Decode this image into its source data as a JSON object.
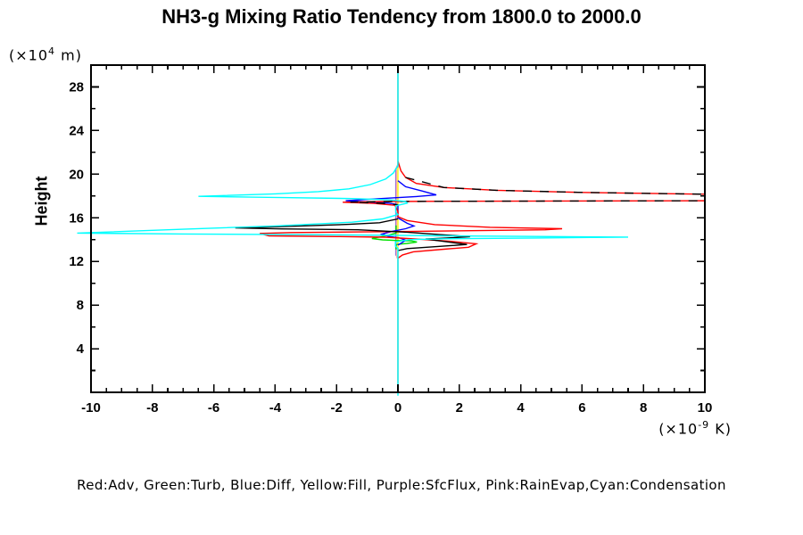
{
  "title": "NH3-g Mixing Ratio Tendency from 1800.0 to 2000.0",
  "legend_text": "Red:Adv, Green:Turb, Blue:Diff, Yellow:Fill, Purple:SfcFlux, Pink:RainEvap,Cyan:Condensation",
  "y_axis": {
    "label": "Height",
    "unit_prefix": "(×10",
    "unit_exp": "4",
    "unit_suffix": " m)",
    "min": 0,
    "max": 30,
    "major_tick_values": [
      4,
      8,
      12,
      16,
      20,
      24,
      28
    ],
    "tick_labels": [
      "4",
      "8",
      "12",
      "16",
      "20",
      "24",
      "28"
    ],
    "minor_tick_interval": 2
  },
  "x_axis": {
    "unit_prefix": "(×10",
    "unit_exp": "-9",
    "unit_suffix": " K)",
    "min": -10,
    "max": 10,
    "major_tick_values": [
      -10,
      -8,
      -6,
      -4,
      -2,
      0,
      2,
      4,
      6,
      8,
      10
    ],
    "tick_labels": [
      "-10",
      "-8",
      "-6",
      "-4",
      "-2",
      "0",
      "2",
      "4",
      "6",
      "8",
      "10"
    ],
    "minor_tick_interval": 0.5
  },
  "chart_data": {
    "type": "line",
    "title": "NH3-g Mixing Ratio Tendency from 1800.0 to 2000.0",
    "xlabel": "(x10^-9 K)",
    "ylabel": "Height (x10^4 m)",
    "xlim": [
      -10,
      10
    ],
    "ylim": [
      0,
      30
    ],
    "grid": false,
    "legend_position": "bottom-text-line",
    "point_format": [
      "tendency_x1e-9_K",
      "height_x1e4_m"
    ],
    "series": [
      {
        "name": "Fill",
        "color": "#ffff00",
        "dash": null,
        "points": [
          [
            0,
            30
          ],
          [
            0,
            0
          ]
        ]
      },
      {
        "name": "SfcFlux",
        "color": "#9370db",
        "dash": null,
        "points": [
          [
            0,
            30
          ],
          [
            0,
            20.7
          ],
          [
            -0.07,
            20.5
          ],
          [
            -0.07,
            12.6
          ],
          [
            0,
            12.4
          ],
          [
            0,
            0
          ]
        ]
      },
      {
        "name": "RainEvap",
        "color": "#ffaaaa",
        "dash": null,
        "points": [
          [
            0,
            30
          ],
          [
            0,
            20.9
          ],
          [
            -0.04,
            20.7
          ],
          [
            -0.04,
            12.4
          ],
          [
            0,
            12.2
          ],
          [
            0,
            0
          ]
        ]
      },
      {
        "name": "Turb",
        "color": "#00e000",
        "dash": null,
        "points": [
          [
            -0.06,
            15.3
          ],
          [
            -0.06,
            14.6
          ],
          [
            -0.4,
            14.35
          ],
          [
            -0.85,
            14.1
          ],
          [
            -0.5,
            13.98
          ],
          [
            -0.06,
            13.92
          ],
          [
            0.45,
            13.88
          ],
          [
            0.62,
            13.78
          ],
          [
            0.3,
            13.65
          ],
          [
            -0.06,
            13.55
          ],
          [
            -0.06,
            13.1
          ]
        ]
      },
      {
        "name": "Diff",
        "color": "#0000ff",
        "dash": null,
        "points": [
          [
            0,
            19.4
          ],
          [
            0.25,
            18.85
          ],
          [
            0.8,
            18.45
          ],
          [
            1.25,
            18.1
          ],
          [
            0.6,
            17.95
          ],
          [
            -0.3,
            17.8
          ],
          [
            -1.7,
            17.57
          ],
          [
            -1.0,
            17.45
          ],
          [
            -0.3,
            17.35
          ],
          [
            0,
            17.2
          ],
          [
            0,
            16.0
          ],
          [
            0.3,
            15.5
          ],
          [
            0.52,
            15.25
          ],
          [
            0.25,
            15.0
          ],
          [
            -0.2,
            14.75
          ],
          [
            -0.52,
            14.5
          ],
          [
            -0.3,
            14.3
          ],
          [
            0.05,
            14.15
          ],
          [
            0.25,
            13.95
          ],
          [
            0.12,
            13.7
          ],
          [
            0,
            13.5
          ]
        ]
      },
      {
        "name": "Adv",
        "color": "#ff0000",
        "dash": null,
        "points": [
          [
            0,
            21.2
          ],
          [
            0.1,
            20.3
          ],
          [
            0.25,
            19.7
          ],
          [
            0.6,
            19.15
          ],
          [
            1.5,
            18.78
          ],
          [
            3.2,
            18.52
          ],
          [
            6,
            18.33
          ],
          [
            10.4,
            18.15
          ],
          [
            10.4,
            17.57
          ],
          [
            2,
            17.52
          ],
          [
            -0.5,
            17.49
          ],
          [
            -1.8,
            17.43
          ],
          [
            -0.8,
            17.32
          ],
          [
            -0.1,
            17.15
          ],
          [
            0,
            16.6
          ],
          [
            0,
            16.1
          ],
          [
            0.3,
            15.75
          ],
          [
            1.2,
            15.38
          ],
          [
            3,
            15.13
          ],
          [
            5.35,
            15.0
          ],
          [
            4.8,
            14.9
          ],
          [
            0,
            14.74
          ],
          [
            -3.5,
            14.65
          ],
          [
            -4.5,
            14.57
          ],
          [
            -4.2,
            14.35
          ],
          [
            -2,
            14.28
          ],
          [
            -0.4,
            14.22
          ],
          [
            0.6,
            14.05
          ],
          [
            1.7,
            13.85
          ],
          [
            2.55,
            13.62
          ],
          [
            2.3,
            13.3
          ],
          [
            1.5,
            13.12
          ],
          [
            0.5,
            12.88
          ],
          [
            0.15,
            12.6
          ],
          [
            0,
            12.3
          ]
        ]
      },
      {
        "name": "black (unlabeled, upper)",
        "color": "#000000",
        "dash": "10 9",
        "points": [
          [
            0.25,
            19.7
          ],
          [
            1.5,
            18.78
          ],
          [
            3.2,
            18.52
          ],
          [
            6,
            18.33
          ],
          [
            10.4,
            18.15
          ],
          [
            10.4,
            17.57
          ],
          [
            2,
            17.52
          ],
          [
            -0.3,
            17.49
          ],
          [
            -1.55,
            17.44
          ],
          [
            -0.5,
            17.33
          ],
          [
            0,
            17.2
          ]
        ]
      },
      {
        "name": "black (unlabeled, lower)",
        "color": "#000000",
        "dash": null,
        "points": [
          [
            0,
            15.9
          ],
          [
            -0.6,
            15.55
          ],
          [
            -1.6,
            15.4
          ],
          [
            -3.5,
            15.22
          ],
          [
            -5.3,
            15.08
          ],
          [
            -3.8,
            14.98
          ],
          [
            -1.3,
            14.9
          ],
          [
            0.3,
            14.68
          ],
          [
            1.4,
            14.45
          ],
          [
            2.35,
            14.27
          ],
          [
            1.6,
            14.15
          ],
          [
            0.9,
            14.05
          ],
          [
            1.6,
            13.8
          ],
          [
            2.25,
            13.55
          ],
          [
            1.2,
            13.35
          ],
          [
            0.3,
            13.18
          ],
          [
            0,
            13.0
          ]
        ]
      },
      {
        "name": "Condensation",
        "color": "#00ffff",
        "dash": null,
        "points": [
          [
            0,
            30
          ],
          [
            0,
            20.8
          ],
          [
            -0.15,
            20.1
          ],
          [
            -0.4,
            19.55
          ],
          [
            -0.9,
            19.05
          ],
          [
            -1.6,
            18.65
          ],
          [
            -2.6,
            18.4
          ],
          [
            -4,
            18.2
          ],
          [
            -6.5,
            17.97
          ],
          [
            -4,
            17.87
          ],
          [
            -1.5,
            17.76
          ],
          [
            -0.3,
            17.65
          ],
          [
            0.25,
            17.5
          ],
          [
            0.3,
            17.35
          ],
          [
            -0.07,
            17.1
          ],
          [
            -0.07,
            16.5
          ],
          [
            0,
            16.3
          ],
          [
            -0.5,
            15.9
          ],
          [
            -1.5,
            15.6
          ],
          [
            -4,
            15.25
          ],
          [
            -7,
            14.95
          ],
          [
            -10.45,
            14.6
          ],
          [
            -7,
            14.52
          ],
          [
            -3,
            14.45
          ],
          [
            -0.5,
            14.4
          ],
          [
            1.5,
            14.35
          ],
          [
            4,
            14.3
          ],
          [
            7.5,
            14.23
          ],
          [
            4.5,
            14.15
          ],
          [
            1.5,
            14.08
          ],
          [
            0.4,
            14.0
          ],
          [
            -0.08,
            13.8
          ],
          [
            -0.08,
            13.4
          ],
          [
            0,
            13.2
          ],
          [
            0,
            -0.3
          ]
        ]
      }
    ]
  }
}
